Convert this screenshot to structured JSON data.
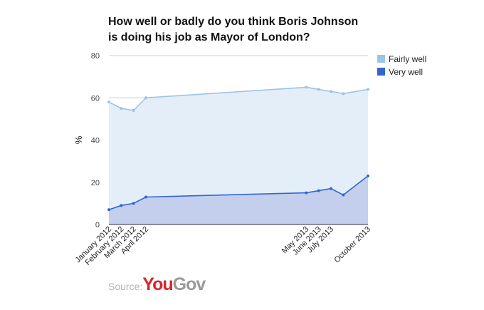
{
  "chart_data": {
    "type": "area",
    "title": [
      "How well or badly do you think Boris Johnson",
      "is doing his job as Mayor of London?"
    ],
    "xlabel": "",
    "ylabel": "%",
    "ylim": [
      0,
      80
    ],
    "yticks": [
      0,
      20,
      40,
      60,
      80
    ],
    "x_tick_labels": [
      "January 2012",
      "February 2012",
      "March 2012",
      "April 2012",
      "May 2013",
      "June 2013",
      "July 2013",
      "October 2013"
    ],
    "x": [
      "2012-01",
      "2012-02",
      "2012-03",
      "2012-04",
      "2013-05",
      "2013-06",
      "2013-07",
      "2013-08",
      "2013-10"
    ],
    "series": [
      {
        "name": "Fairly well",
        "color": "#9dc3e6",
        "fill": "#e4eef8",
        "values": [
          58,
          55,
          54,
          60,
          65,
          64,
          63,
          62,
          64
        ]
      },
      {
        "name": "Very well",
        "color": "#3366cc",
        "fill": "#c4cfee",
        "values": [
          7,
          9,
          10,
          13,
          15,
          16,
          17,
          14,
          23
        ]
      }
    ],
    "grid": true,
    "legend": "right"
  },
  "source": {
    "label": "Source:",
    "brand_part_1": "You",
    "brand_part_2": "Gov"
  }
}
